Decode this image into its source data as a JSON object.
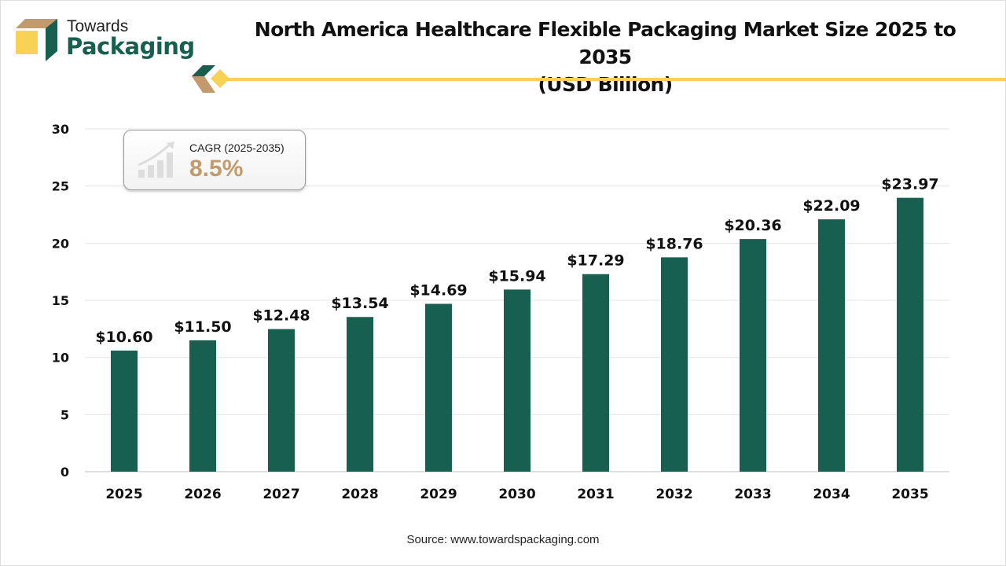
{
  "brand": {
    "line1": "Towards",
    "line2": "Packaging"
  },
  "title": {
    "line1": "North America Healthcare Flexible Packaging Market Size 2025 to 2035",
    "line2": "(USD Billion)"
  },
  "cagr": {
    "label": "CAGR (2025-2035)",
    "value": "8.5%"
  },
  "source": "Source: www.towardspackaging.com",
  "colors": {
    "bar": "#17604f",
    "accent": "#f7d255",
    "cagr": "#c29a6b"
  },
  "chart_data": {
    "type": "bar",
    "categories": [
      "2025",
      "2026",
      "2027",
      "2028",
      "2029",
      "2030",
      "2031",
      "2032",
      "2033",
      "2034",
      "2035"
    ],
    "values": [
      10.6,
      11.5,
      12.48,
      13.54,
      14.69,
      15.94,
      17.29,
      18.76,
      20.36,
      22.09,
      23.97
    ],
    "data_labels": [
      "$10.60",
      "$11.50",
      "$12.48",
      "$13.54",
      "$14.69",
      "$15.94",
      "$17.29",
      "$18.76",
      "$20.36",
      "$22.09",
      "$23.97"
    ],
    "yticks": [
      0,
      5,
      10,
      15,
      20,
      25,
      30
    ],
    "ylim": [
      0,
      30
    ],
    "grid": true
  }
}
